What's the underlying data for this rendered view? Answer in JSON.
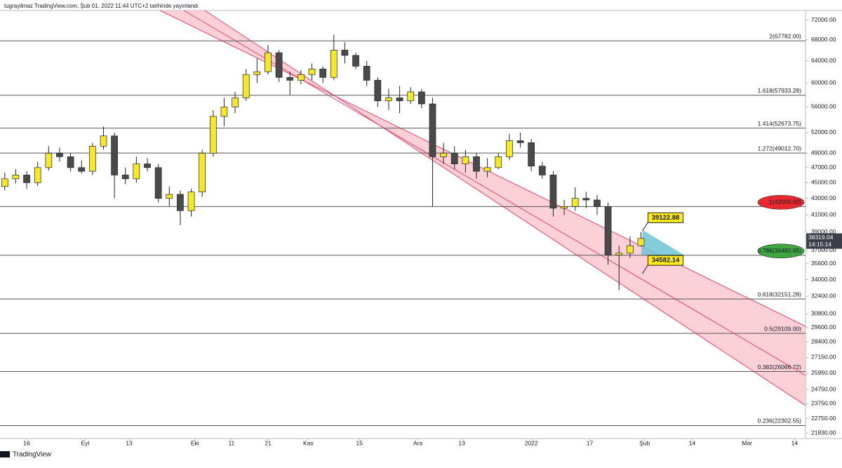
{
  "header": "tugrayilmaz TradingView.com, Şub 01, 2022 11:44 UTC+2 tarihinde yayınlandı",
  "footer": "TradingView",
  "chart_data": {
    "type": "candlestick",
    "log_scale": true,
    "grid": false,
    "up_color": "#f5e82a",
    "down_color": "#4a4a4a",
    "x": [
      -6,
      -3,
      0,
      3,
      6,
      9,
      12,
      15,
      18,
      21,
      24,
      27,
      30,
      33,
      36,
      39,
      42,
      45,
      48,
      51,
      54,
      57,
      60,
      63,
      66,
      69,
      72,
      75,
      78,
      81,
      84,
      87,
      90,
      93,
      96,
      99,
      102,
      105,
      108,
      111,
      114,
      117,
      120,
      123,
      126,
      129,
      132,
      135,
      138,
      141,
      144,
      147,
      150,
      153,
      156,
      159,
      162,
      165,
      168
    ],
    "open": [
      44500,
      45500,
      46000,
      45000,
      47000,
      49000,
      48500,
      47000,
      46500,
      50000,
      51500,
      46000,
      45500,
      47500,
      47000,
      43000,
      43500,
      41500,
      43800,
      49000,
      54500,
      56000,
      57500,
      61500,
      62000,
      65500,
      61000,
      60500,
      61500,
      62500,
      61000,
      66000,
      65000,
      63000,
      60500,
      57000,
      57500,
      57000,
      58500,
      56500,
      48500,
      49000,
      47500,
      48500,
      46500,
      47000,
      48500,
      50800,
      50500,
      47200,
      46000,
      41800,
      42000,
      43000,
      42800,
      42000,
      36500,
      36700,
      37500
    ],
    "high": [
      46300,
      46800,
      46500,
      47800,
      50000,
      49800,
      49000,
      48000,
      50500,
      52900,
      52000,
      47000,
      48500,
      48300,
      47500,
      44500,
      44000,
      44200,
      49500,
      55500,
      57500,
      58500,
      62500,
      64500,
      67000,
      66000,
      62000,
      62300,
      63500,
      63000,
      69000,
      67500,
      65500,
      64000,
      61000,
      59000,
      59500,
      59300,
      59000,
      57500,
      50500,
      50000,
      49500,
      49000,
      48300,
      49000,
      51800,
      52000,
      51000,
      47800,
      46500,
      42800,
      44400,
      43800,
      43400,
      42500,
      37500,
      38500,
      39000
    ],
    "low": [
      44000,
      44900,
      44200,
      44600,
      46600,
      47800,
      46500,
      46200,
      46000,
      49500,
      43000,
      44800,
      45000,
      46500,
      42500,
      42000,
      39800,
      40800,
      43200,
      48500,
      53000,
      55000,
      57000,
      60000,
      61500,
      60200,
      58000,
      59800,
      60500,
      60000,
      60500,
      63500,
      62500,
      59500,
      56000,
      55500,
      55000,
      56500,
      55800,
      42000,
      47500,
      46800,
      46300,
      45500,
      45700,
      46800,
      48000,
      49800,
      46500,
      45500,
      40800,
      41000,
      41500,
      41800,
      41000,
      35500,
      33000,
      36200,
      37400
    ],
    "close": [
      45500,
      46000,
      45000,
      47000,
      49000,
      48500,
      47000,
      46500,
      50000,
      51500,
      46000,
      45500,
      47500,
      47000,
      43000,
      43500,
      41500,
      43800,
      49000,
      54500,
      56000,
      57500,
      61500,
      62000,
      65500,
      61000,
      60500,
      61500,
      62500,
      61000,
      66000,
      65000,
      63000,
      60500,
      57000,
      57500,
      57000,
      58500,
      56500,
      48500,
      49000,
      47500,
      48500,
      46500,
      47000,
      48500,
      50800,
      50500,
      47200,
      46000,
      41800,
      42000,
      43000,
      42800,
      42000,
      36500,
      36700,
      37500,
      38300
    ],
    "xlim": [
      -7.3,
      213
    ],
    "xticks": [
      {
        "value": 0,
        "label": "16"
      },
      {
        "value": 16,
        "label": "Eyl"
      },
      {
        "value": 28,
        "label": "13"
      },
      {
        "value": 46,
        "label": "Eki"
      },
      {
        "value": 56,
        "label": "11"
      },
      {
        "value": 66,
        "label": "21"
      },
      {
        "value": 77,
        "label": "Kas"
      },
      {
        "value": 91,
        "label": "15"
      },
      {
        "value": 107,
        "label": "Ara"
      },
      {
        "value": 119,
        "label": "13"
      },
      {
        "value": 138,
        "label": "2022"
      },
      {
        "value": 154,
        "label": "17"
      },
      {
        "value": 169,
        "label": "Şub"
      },
      {
        "value": 182,
        "label": "14"
      },
      {
        "value": 197,
        "label": "Mar"
      },
      {
        "value": 210,
        "label": "14"
      }
    ],
    "ylim": [
      21480,
      74000
    ],
    "yticks": [
      {
        "value": 72000,
        "label": "72000.00"
      },
      {
        "value": 68000,
        "label": "68000.00"
      },
      {
        "value": 64000,
        "label": "64000.00"
      },
      {
        "value": 60000,
        "label": "60000.00"
      },
      {
        "value": 56000,
        "label": "56000.00"
      },
      {
        "value": 52000,
        "label": "52000.00"
      },
      {
        "value": 49000,
        "label": "49000.00"
      },
      {
        "value": 47000,
        "label": "47000.00"
      },
      {
        "value": 45000,
        "label": "45000.00"
      },
      {
        "value": 43000,
        "label": "43000.00"
      },
      {
        "value": 41000,
        "label": "41000.00"
      },
      {
        "value": 39000,
        "label": "39000.00"
      },
      {
        "value": 37000,
        "label": "37000.00"
      },
      {
        "value": 35600,
        "label": "35600.00"
      },
      {
        "value": 34000,
        "label": "34000.00"
      },
      {
        "value": 32400,
        "label": "32400.00"
      },
      {
        "value": 30800,
        "label": "30800.00"
      },
      {
        "value": 29600,
        "label": "29600.00"
      },
      {
        "value": 28400,
        "label": "28400.00"
      },
      {
        "value": 27150,
        "label": "27150.00"
      },
      {
        "value": 25950,
        "label": "25950.00"
      },
      {
        "value": 24750,
        "label": "24750.00"
      },
      {
        "value": 23750,
        "label": "23750.00"
      },
      {
        "value": 22750,
        "label": "22750.00"
      },
      {
        "value": 21830,
        "label": "21830.00"
      }
    ],
    "fib_levels": [
      {
        "value": 67782.0,
        "label": "2(67782.00)"
      },
      {
        "value": 57933.28,
        "label": "1.618(57933.28)"
      },
      {
        "value": 52673.75,
        "label": "1.414(52673.75)"
      },
      {
        "value": 49012.7,
        "label": "1.272(49012.70)"
      },
      {
        "value": 42000.0,
        "label": "1(42000.00)",
        "color": "#e8292e"
      },
      {
        "value": 36482.65,
        "label": "0.786(36482.65)",
        "color": "#3fa640"
      },
      {
        "value": 32151.28,
        "label": "0.618(32151.28)"
      },
      {
        "value": 29109.0,
        "label": "0.5(29109.00)"
      },
      {
        "value": 26066.72,
        "label": "0.382(26066.72)"
      },
      {
        "value": 22302.55,
        "label": "0.236(22302.55)"
      }
    ],
    "annotations": [
      {
        "value": 39122.88,
        "label": "39122.88"
      },
      {
        "value": 34582.14,
        "label": "34582.14"
      }
    ],
    "last_price": {
      "value": 38319.04,
      "label": "38319.04",
      "countdown": "14:15:14"
    }
  }
}
